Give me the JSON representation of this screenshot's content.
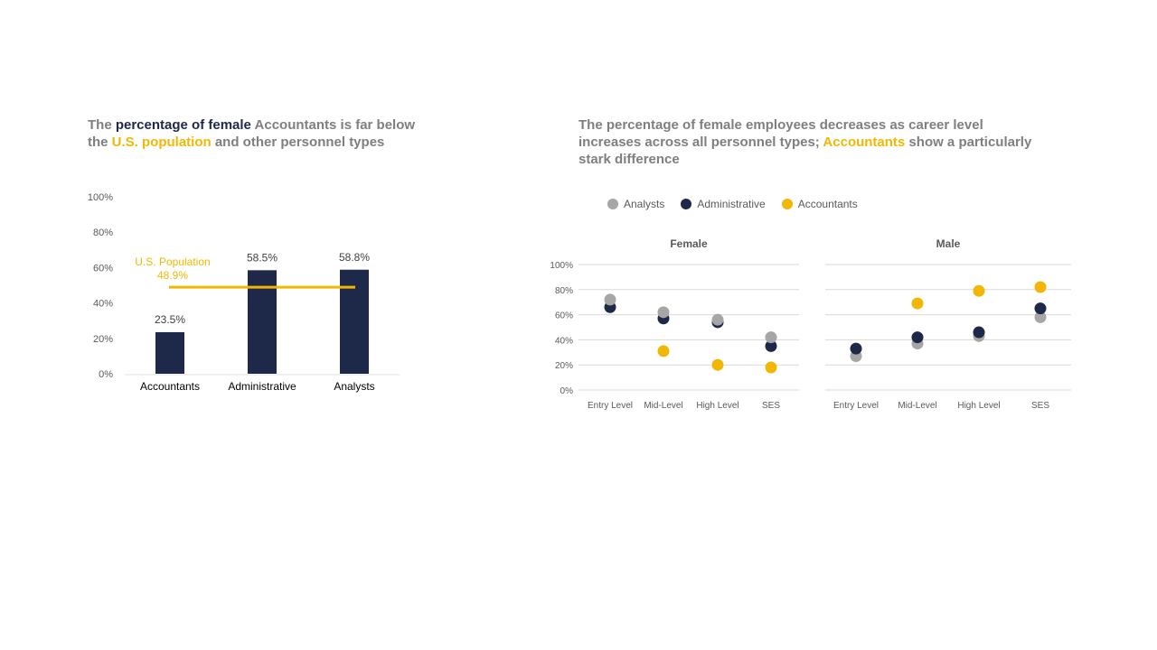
{
  "left_title": {
    "p1": "The ",
    "p2": "percentage of female",
    "p3": " Accountants is far below ",
    "p4": "the ",
    "p5": "U.S. population",
    "p6": " and other personnel types"
  },
  "right_title": {
    "p1": "The percentage of female employees decreases as career level increases across all personnel types; ",
    "p2": "Accountants",
    "p3": " show a particularly stark difference"
  },
  "colors": {
    "navy": "#1e2849",
    "gold": "#f2b705",
    "gray": "#a6a6a6"
  },
  "chart_data": [
    {
      "type": "bar",
      "categories": [
        "Accountants",
        "Administrative",
        "Analysts"
      ],
      "values": [
        23.5,
        58.5,
        58.8
      ],
      "data_labels": [
        "23.5%",
        "58.5%",
        "58.8%"
      ],
      "ylim": [
        0,
        100
      ],
      "yticks": [
        "0%",
        "20%",
        "40%",
        "60%",
        "80%",
        "100%"
      ],
      "reference_line": {
        "label": "U.S. Population",
        "value": 48.9,
        "value_label": "48.9%"
      },
      "grid": false
    },
    {
      "type": "scatter",
      "legend": [
        "Analysts",
        "Administrative",
        "Accountants"
      ],
      "legend_position": "top-left",
      "categories": [
        "Entry Level",
        "Mid-Level",
        "High Level",
        "SES"
      ],
      "yticks": [
        "0%",
        "20%",
        "40%",
        "60%",
        "80%",
        "100%"
      ],
      "ylim": [
        0,
        100
      ],
      "grid": true,
      "panels": [
        {
          "title": "Female",
          "series": [
            {
              "name": "Analysts",
              "values": [
                72,
                62,
                56,
                42
              ]
            },
            {
              "name": "Administrative",
              "values": [
                66,
                57,
                54,
                35
              ]
            },
            {
              "name": "Accountants",
              "values": [
                null,
                31,
                20,
                18
              ]
            }
          ]
        },
        {
          "title": "Male",
          "series": [
            {
              "name": "Analysts",
              "values": [
                27,
                37,
                43,
                58
              ]
            },
            {
              "name": "Administrative",
              "values": [
                33,
                42,
                46,
                65
              ]
            },
            {
              "name": "Accountants",
              "values": [
                null,
                69,
                79,
                82
              ]
            }
          ]
        }
      ]
    }
  ]
}
